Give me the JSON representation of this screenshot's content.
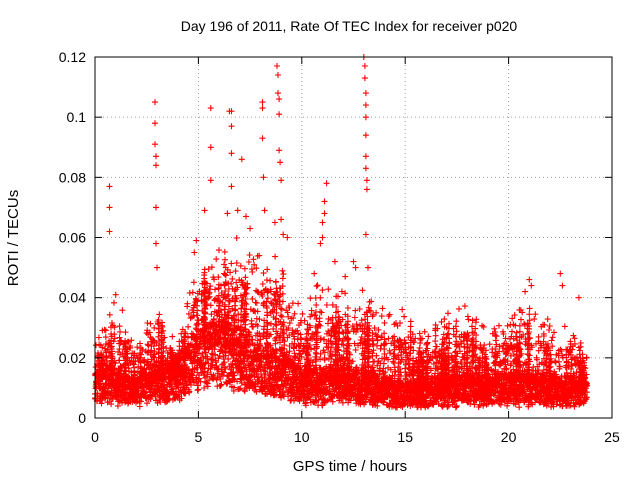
{
  "chart_data": {
    "type": "scatter",
    "title": "Day 196 of 2011, Rate Of TEC Index for receiver p020",
    "xlabel": "GPS time / hours",
    "ylabel": "ROTI / TECUs",
    "xlim": [
      0,
      25
    ],
    "ylim": [
      0,
      0.12
    ],
    "xticks": [
      "0",
      "5",
      "10",
      "15",
      "20",
      "25"
    ],
    "yticks": [
      "0",
      "0.02",
      "0.04",
      "0.06",
      "0.08",
      "0.1",
      "0.12"
    ],
    "grid": true,
    "marker": "+",
    "color": "#ff0000",
    "spikes": [
      {
        "x": 0.7,
        "y": 0.077
      },
      {
        "x": 0.7,
        "y": 0.07
      },
      {
        "x": 0.7,
        "y": 0.062
      },
      {
        "x": 1.0,
        "y": 0.041
      },
      {
        "x": 2.9,
        "y": 0.105
      },
      {
        "x": 2.9,
        "y": 0.098
      },
      {
        "x": 2.9,
        "y": 0.091
      },
      {
        "x": 2.95,
        "y": 0.087
      },
      {
        "x": 2.95,
        "y": 0.084
      },
      {
        "x": 2.95,
        "y": 0.07
      },
      {
        "x": 2.95,
        "y": 0.058
      },
      {
        "x": 3.0,
        "y": 0.05
      },
      {
        "x": 5.6,
        "y": 0.103
      },
      {
        "x": 5.6,
        "y": 0.09
      },
      {
        "x": 5.6,
        "y": 0.079
      },
      {
        "x": 5.3,
        "y": 0.069
      },
      {
        "x": 6.5,
        "y": 0.102
      },
      {
        "x": 6.6,
        "y": 0.102
      },
      {
        "x": 6.6,
        "y": 0.097
      },
      {
        "x": 6.6,
        "y": 0.088
      },
      {
        "x": 6.6,
        "y": 0.077
      },
      {
        "x": 6.4,
        "y": 0.068
      },
      {
        "x": 7.1,
        "y": 0.086
      },
      {
        "x": 7.5,
        "y": 0.063
      },
      {
        "x": 8.1,
        "y": 0.105
      },
      {
        "x": 8.1,
        "y": 0.103
      },
      {
        "x": 8.1,
        "y": 0.093
      },
      {
        "x": 8.15,
        "y": 0.08
      },
      {
        "x": 8.2,
        "y": 0.069
      },
      {
        "x": 8.8,
        "y": 0.117
      },
      {
        "x": 8.85,
        "y": 0.114
      },
      {
        "x": 8.85,
        "y": 0.108
      },
      {
        "x": 8.9,
        "y": 0.106
      },
      {
        "x": 8.9,
        "y": 0.101
      },
      {
        "x": 8.9,
        "y": 0.089
      },
      {
        "x": 8.95,
        "y": 0.085
      },
      {
        "x": 9.0,
        "y": 0.079
      },
      {
        "x": 9.0,
        "y": 0.066
      },
      {
        "x": 9.1,
        "y": 0.061
      },
      {
        "x": 11.2,
        "y": 0.078
      },
      {
        "x": 11.1,
        "y": 0.072
      },
      {
        "x": 11.1,
        "y": 0.068
      },
      {
        "x": 11.0,
        "y": 0.065
      },
      {
        "x": 11.0,
        "y": 0.06
      },
      {
        "x": 10.9,
        "y": 0.058
      },
      {
        "x": 13.0,
        "y": 0.12
      },
      {
        "x": 13.05,
        "y": 0.117
      },
      {
        "x": 13.05,
        "y": 0.113
      },
      {
        "x": 13.1,
        "y": 0.108
      },
      {
        "x": 13.1,
        "y": 0.104
      },
      {
        "x": 13.1,
        "y": 0.1
      },
      {
        "x": 13.1,
        "y": 0.094
      },
      {
        "x": 13.1,
        "y": 0.087
      },
      {
        "x": 13.1,
        "y": 0.083
      },
      {
        "x": 13.15,
        "y": 0.079
      },
      {
        "x": 13.15,
        "y": 0.076
      },
      {
        "x": 13.1,
        "y": 0.061
      },
      {
        "x": 13.2,
        "y": 0.05
      },
      {
        "x": 12.6,
        "y": 0.05
      },
      {
        "x": 12.5,
        "y": 0.052
      },
      {
        "x": 12.1,
        "y": 0.047
      },
      {
        "x": 11.6,
        "y": 0.052
      },
      {
        "x": 10.6,
        "y": 0.048
      },
      {
        "x": 22.5,
        "y": 0.048
      },
      {
        "x": 22.6,
        "y": 0.044
      },
      {
        "x": 21.0,
        "y": 0.046
      },
      {
        "x": 21.1,
        "y": 0.044
      },
      {
        "x": 20.8,
        "y": 0.042
      },
      {
        "x": 23.4,
        "y": 0.04
      },
      {
        "x": 4.8,
        "y": 0.055
      },
      {
        "x": 4.9,
        "y": 0.059
      },
      {
        "x": 6.9,
        "y": 0.069
      },
      {
        "x": 7.3,
        "y": 0.067
      },
      {
        "x": 9.3,
        "y": 0.06
      },
      {
        "x": 8.7,
        "y": 0.065
      }
    ],
    "activity_profile": [
      {
        "x": 0.0,
        "base": 0.014,
        "peak": 0.024
      },
      {
        "x": 1.0,
        "base": 0.012,
        "peak": 0.038
      },
      {
        "x": 2.0,
        "base": 0.01,
        "peak": 0.024
      },
      {
        "x": 3.0,
        "base": 0.013,
        "peak": 0.034
      },
      {
        "x": 4.0,
        "base": 0.014,
        "peak": 0.024
      },
      {
        "x": 5.0,
        "base": 0.022,
        "peak": 0.05
      },
      {
        "x": 6.0,
        "base": 0.025,
        "peak": 0.055
      },
      {
        "x": 7.0,
        "base": 0.022,
        "peak": 0.058
      },
      {
        "x": 8.0,
        "base": 0.018,
        "peak": 0.056
      },
      {
        "x": 9.0,
        "base": 0.016,
        "peak": 0.052
      },
      {
        "x": 10.0,
        "base": 0.012,
        "peak": 0.035
      },
      {
        "x": 11.0,
        "base": 0.012,
        "peak": 0.045
      },
      {
        "x": 12.0,
        "base": 0.012,
        "peak": 0.04
      },
      {
        "x": 13.0,
        "base": 0.012,
        "peak": 0.04
      },
      {
        "x": 14.0,
        "base": 0.01,
        "peak": 0.035
      },
      {
        "x": 15.0,
        "base": 0.009,
        "peak": 0.033
      },
      {
        "x": 16.0,
        "base": 0.009,
        "peak": 0.028
      },
      {
        "x": 17.0,
        "base": 0.01,
        "peak": 0.034
      },
      {
        "x": 18.0,
        "base": 0.011,
        "peak": 0.035
      },
      {
        "x": 19.0,
        "base": 0.01,
        "peak": 0.028
      },
      {
        "x": 20.0,
        "base": 0.011,
        "peak": 0.032
      },
      {
        "x": 21.0,
        "base": 0.011,
        "peak": 0.036
      },
      {
        "x": 22.0,
        "base": 0.01,
        "peak": 0.03
      },
      {
        "x": 23.0,
        "base": 0.01,
        "peak": 0.028
      },
      {
        "x": 24.0,
        "base": 0.01,
        "peak": 0.022
      }
    ],
    "x_end": 23.8
  }
}
